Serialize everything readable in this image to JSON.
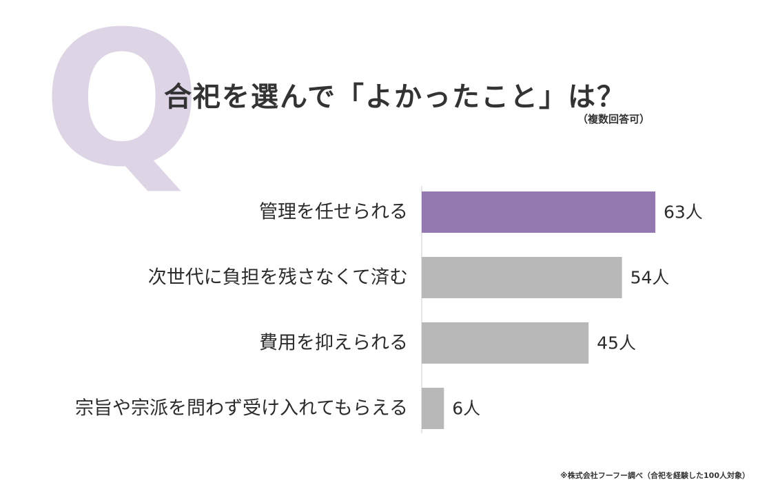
{
  "q_mark": "Q",
  "title": "合祀を選んで「よかったこと」は？",
  "subtitle": "（複数回答可）",
  "footnote": "※株式会社フーフー調べ（合祀を経験した100人対象）",
  "colors": {
    "highlight": "#9479b0",
    "bar": "#b8b8b8",
    "axis": "#cccccc",
    "q_mark": "#ddd5e6"
  },
  "chart_data": {
    "type": "bar",
    "orientation": "horizontal",
    "categories": [
      "管理を任せられる",
      "次世代に負担を残さなくて済む",
      "費用を抑えられる",
      "宗旨や宗派を問わず受け入れてもらえる"
    ],
    "values": [
      63,
      54,
      45,
      6
    ],
    "value_labels": [
      "63人",
      "54人",
      "45人",
      "6人"
    ],
    "highlight_index": 0,
    "grid": false,
    "legend": "none"
  }
}
